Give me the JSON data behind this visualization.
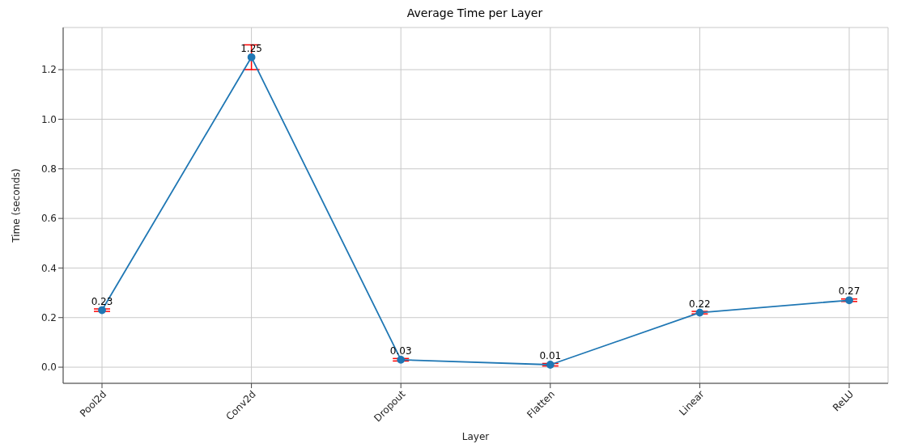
{
  "chart_data": {
    "type": "line",
    "title": "Average Time per Layer",
    "xlabel": "Layer",
    "ylabel": "Time (seconds)",
    "categories": [
      "Pool2d",
      "Conv2d",
      "Dropout",
      "Flatten",
      "Linear",
      "ReLU"
    ],
    "series": [
      {
        "color": "#1f77b4",
        "values": [
          0.23,
          1.25,
          0.03,
          0.01,
          0.22,
          0.27
        ],
        "errors": [
          0.005,
          0.05,
          0.005,
          0.005,
          0.005,
          0.005
        ]
      }
    ],
    "ylim": [
      -0.065,
      1.37
    ],
    "yticks": [
      {
        "value": 0,
        "label": "0.0"
      },
      0.2,
      0.4,
      0.6,
      0.8,
      {
        "value": 1,
        "label": "1.0"
      },
      1.2
    ],
    "grid": true,
    "marker": "circle",
    "line_style": "solid",
    "data_labels": true
  }
}
